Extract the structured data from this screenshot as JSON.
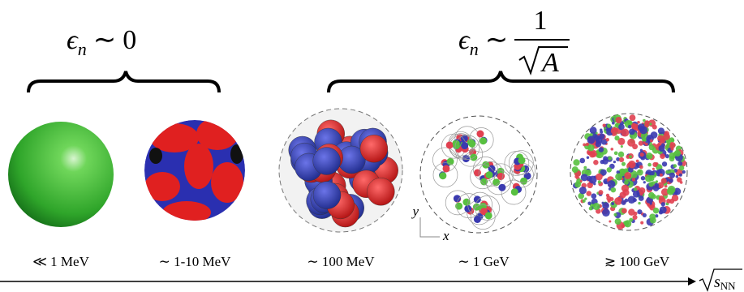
{
  "formula_left": {
    "symbol": "ϵ",
    "subscript": "n",
    "relation": "∼",
    "value": "0"
  },
  "formula_right": {
    "symbol": "ϵ",
    "subscript": "n",
    "relation": "∼",
    "numerator": "1",
    "radicand": "A"
  },
  "energy_labels": [
    "≪ 1 MeV",
    "∼ 1-10 MeV",
    "∼ 100 MeV",
    "∼ 1 GeV",
    "≳ 100 GeV"
  ],
  "frame_axes": {
    "y": "y",
    "x": "x"
  },
  "energy_axis": {
    "radicand": "s",
    "subscript": "NN"
  }
}
